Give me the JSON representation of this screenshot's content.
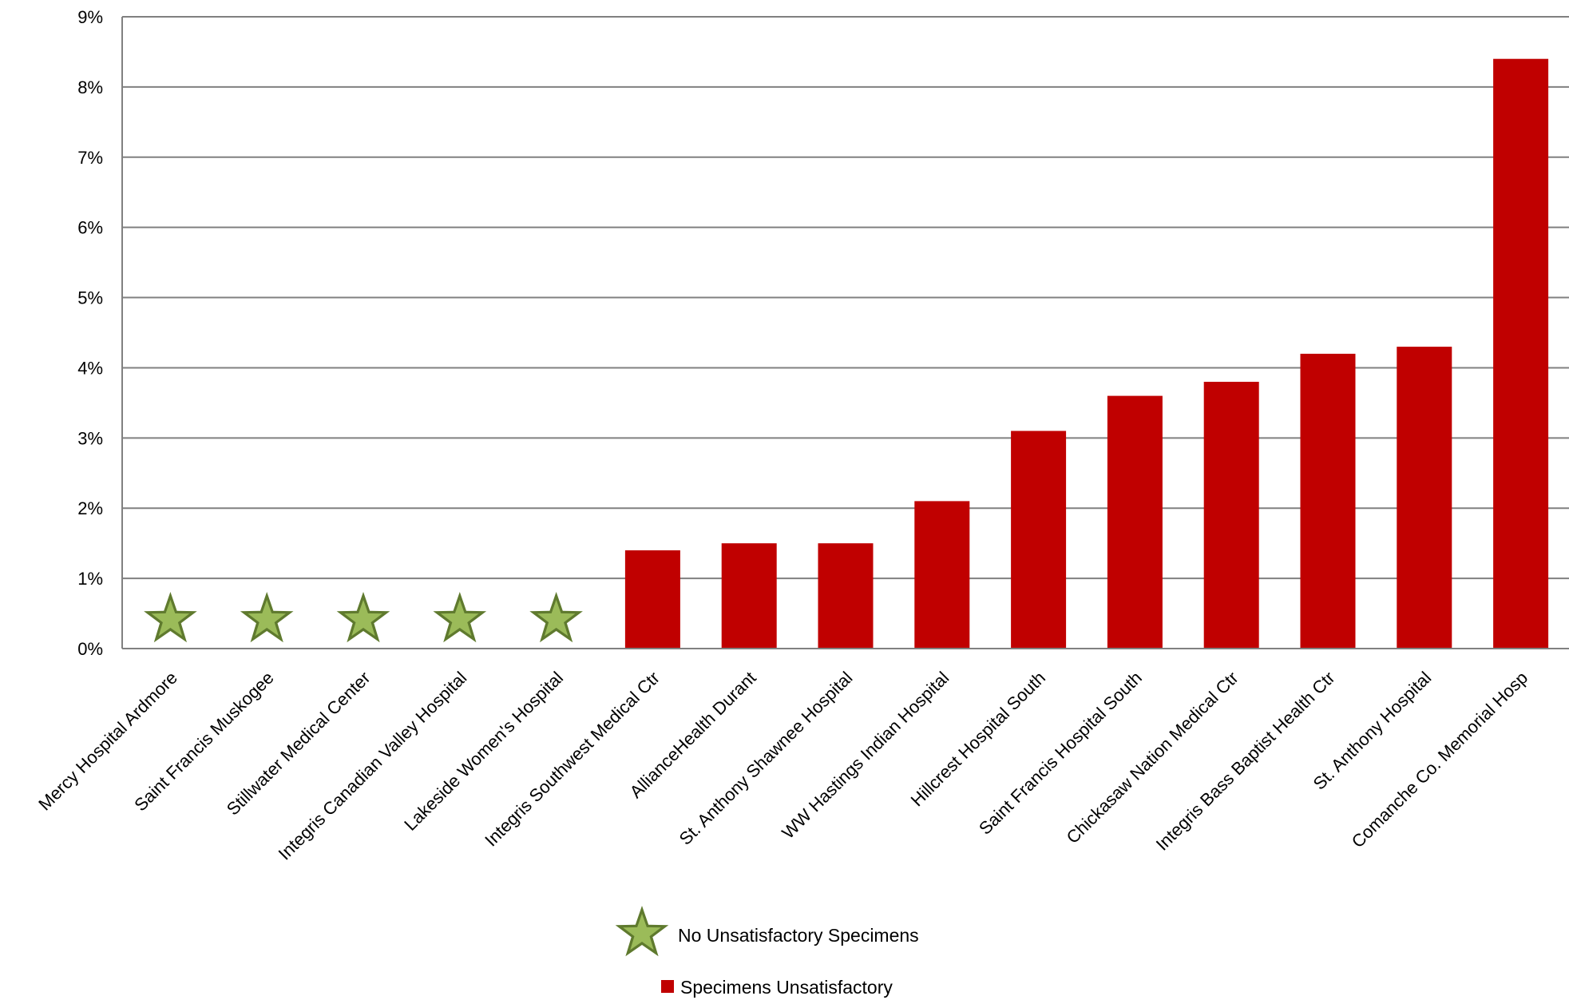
{
  "chart_data": {
    "type": "bar",
    "categories": [
      "Mercy Hospital Ardmore",
      "Saint Francis Muskogee",
      "Stillwater Medical Center",
      "Integris Canadian Valley Hospital",
      "Lakeside Women's Hospital",
      "Integris Southwest Medical Ctr",
      "AllianceHealth Durant",
      "St. Anthony Shawnee Hospital",
      "WW Hastings Indian Hospital",
      "Hillcrest Hospital South",
      "Saint Francis Hospital South",
      "Chickasaw Nation Medical Ctr",
      "Integris Bass Baptist Health Ctr",
      "St. Anthony Hospital",
      "Comanche Co. Memorial Hosp"
    ],
    "values": [
      0,
      0,
      0,
      0,
      0,
      1.4,
      1.5,
      1.5,
      2.1,
      3.1,
      3.6,
      3.8,
      4.2,
      4.3,
      8.4
    ],
    "star_markers": [
      true,
      true,
      true,
      true,
      true,
      false,
      false,
      false,
      false,
      false,
      false,
      false,
      false,
      false,
      false
    ],
    "ylim": [
      0,
      9
    ],
    "yticks": [
      "0%",
      "1%",
      "2%",
      "3%",
      "4%",
      "5%",
      "6%",
      "7%",
      "8%",
      "9%"
    ],
    "grid": true,
    "legend": [
      {
        "label": "No Unsatisfactory Specimens",
        "marker": "star"
      },
      {
        "label": "Specimens Unsatisfactory",
        "marker": "square"
      }
    ],
    "legend_placement": "bottom-center",
    "colors": {
      "bar": "#c00000",
      "star_fill": "#9bbb59",
      "star_stroke": "#5f7a2e",
      "grid": "#808080",
      "axis": "#808080"
    }
  }
}
